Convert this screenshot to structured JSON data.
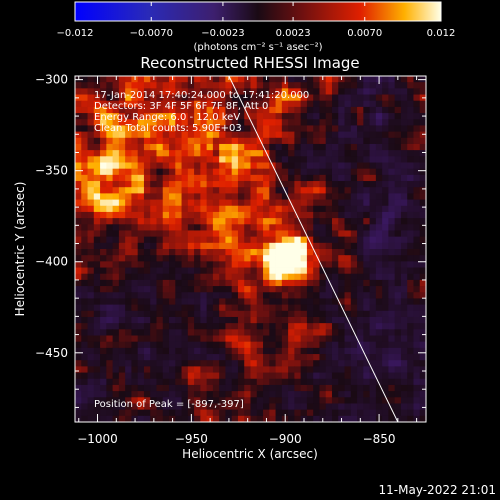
{
  "colorbar": {
    "tick_labels": [
      "−0.012",
      "−0.0070",
      "−0.0023",
      "0.0023",
      "0.0070",
      "0.012"
    ],
    "tick_values": [
      -0.012,
      -0.007,
      -0.0023,
      0.0023,
      0.007,
      0.012
    ],
    "range": [
      -0.012,
      0.012
    ],
    "unit_label": "(photons cm⁻² s⁻¹ asec⁻²)"
  },
  "chart_data": {
    "type": "heatmap",
    "title": "Reconstructed RHESSI Image",
    "xlabel": "Heliocentric X (arcsec)",
    "ylabel": "Heliocentric Y (arcsec)",
    "xlim": [
      -1012,
      -825
    ],
    "ylim": [
      -488,
      -298
    ],
    "x_ticks": [
      -1000,
      -950,
      -900,
      -850
    ],
    "x_tick_labels": [
      "−1000",
      "−950",
      "−900",
      "−850"
    ],
    "y_ticks": [
      -300,
      -350,
      -400,
      -450
    ],
    "y_tick_labels": [
      "−300",
      "−350",
      "−400",
      "−450"
    ],
    "peak": [
      -897,
      -397
    ],
    "limb_line": [
      [
        -930,
        -298
      ],
      [
        -840,
        -488
      ]
    ],
    "annotations": {
      "time_range": "17-Jan-2014 17:40:24.000 to 17:41:20.000",
      "detectors": "Detectors: 3F 4F 5F 6F 7F 8F, Att 0",
      "energy": "Energy Range: 6.0 - 12.0 keV",
      "clean": "Clean    Total counts: 5.90E+03",
      "peak_label": "Position of Peak = [-897,-397]"
    }
  },
  "footer": {
    "date": "11-May-2022 21:01"
  },
  "colors": {
    "background": "#000000",
    "text": "#ffffff"
  }
}
